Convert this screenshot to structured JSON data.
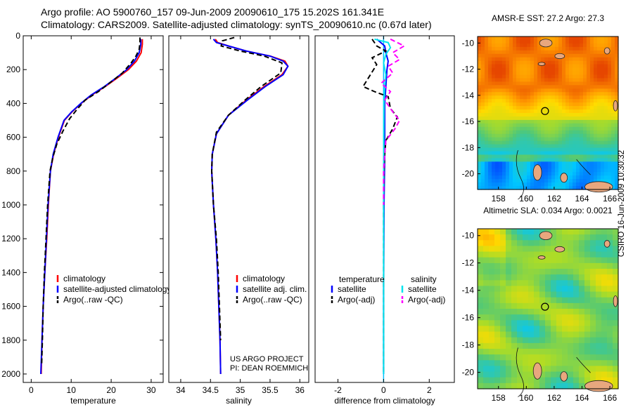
{
  "title": {
    "line1": "Argo profile: AO 5900760_157 09-Jun-2009 20090610_175 15.202S 161.341E",
    "line2": "Climatology: CARS2009. Satellite-adjusted climatology: synTS_20090610.nc (0.67d later)"
  },
  "credit": "CSIRO 16-Jun-2009 10:30:32",
  "project_note": {
    "line1": "US ARGO PROJECT",
    "line2": "PI: DEAN ROEMMICH"
  },
  "colors": {
    "climatology": "#ff0000",
    "satellite": "#0000ff",
    "argo": "#000000",
    "sat_salinity": "#00e5ee",
    "argo_salinity": "#ff00ff",
    "zero_line": "#00bfff"
  },
  "chart_data": [
    {
      "type": "line",
      "id": "temperature",
      "xlabel": "temperature",
      "ylabel": "",
      "xlim": [
        -2,
        33
      ],
      "ylim": [
        2050,
        0
      ],
      "y_reversed": true,
      "xticks": [
        0,
        10,
        20,
        30
      ],
      "yticks": [
        0,
        200,
        400,
        600,
        800,
        1000,
        1200,
        1400,
        1600,
        1800,
        2000
      ],
      "legend_position": "lower-center",
      "legend": [
        "climatology",
        "satellite-adjusted climatology",
        "Argo(..raw -QC)"
      ],
      "series": [
        {
          "name": "climatology",
          "style": "solid",
          "points": [
            [
              27.8,
              20
            ],
            [
              27.8,
              50
            ],
            [
              27.5,
              100
            ],
            [
              26.3,
              150
            ],
            [
              24.3,
              200
            ],
            [
              21.5,
              250
            ],
            [
              18.5,
              300
            ],
            [
              15.2,
              350
            ],
            [
              12.5,
              400
            ],
            [
              10.2,
              450
            ],
            [
              8.3,
              500
            ],
            [
              6.8,
              600
            ],
            [
              5.6,
              700
            ],
            [
              4.8,
              800
            ],
            [
              4.3,
              1000
            ],
            [
              3.9,
              1200
            ],
            [
              3.4,
              1400
            ],
            [
              3.0,
              1600
            ],
            [
              2.7,
              1800
            ],
            [
              2.5,
              2000
            ]
          ]
        },
        {
          "name": "satellite",
          "style": "solid",
          "points": [
            [
              27.4,
              20
            ],
            [
              27.4,
              50
            ],
            [
              27.0,
              100
            ],
            [
              25.8,
              150
            ],
            [
              23.9,
              200
            ],
            [
              21.2,
              250
            ],
            [
              18.3,
              300
            ],
            [
              15.0,
              350
            ],
            [
              12.4,
              400
            ],
            [
              10.1,
              450
            ],
            [
              8.2,
              500
            ],
            [
              6.7,
              600
            ],
            [
              5.5,
              700
            ],
            [
              4.8,
              800
            ],
            [
              4.2,
              1000
            ],
            [
              3.8,
              1200
            ],
            [
              3.4,
              1400
            ],
            [
              3.0,
              1600
            ],
            [
              2.7,
              1800
            ],
            [
              2.4,
              2000
            ]
          ]
        },
        {
          "name": "argo",
          "style": "dashed",
          "points": [
            [
              27.2,
              10
            ],
            [
              27.2,
              40
            ],
            [
              27.0,
              80
            ],
            [
              26.2,
              120
            ],
            [
              25.0,
              160
            ],
            [
              22.8,
              220
            ],
            [
              20.1,
              270
            ],
            [
              16.8,
              330
            ],
            [
              13.5,
              380
            ],
            [
              11.3,
              440
            ],
            [
              9.6,
              490
            ],
            [
              8.0,
              560
            ],
            [
              6.4,
              640
            ],
            [
              5.4,
              720
            ],
            [
              4.7,
              800
            ],
            [
              4.1,
              1000
            ],
            [
              3.7,
              1200
            ],
            [
              3.3,
              1400
            ],
            [
              3.0,
              1600
            ],
            [
              2.8,
              1800
            ],
            [
              2.6,
              1950
            ]
          ]
        }
      ]
    },
    {
      "type": "line",
      "id": "salinity",
      "xlabel": "salinity",
      "ylabel": "",
      "xlim": [
        33.8,
        36.15
      ],
      "ylim": [
        2050,
        0
      ],
      "y_reversed": true,
      "xticks": [
        34,
        34.5,
        35,
        35.5,
        36
      ],
      "yticks": [],
      "legend_position": "lower-right",
      "legend": [
        "climatology",
        "satellite adj. clim.",
        "Argo(..raw -QC)"
      ],
      "series": [
        {
          "name": "climatology",
          "style": "solid",
          "points": [
            [
              34.58,
              20
            ],
            [
              34.62,
              40
            ],
            [
              34.8,
              60
            ],
            [
              35.1,
              90
            ],
            [
              35.5,
              120
            ],
            [
              35.75,
              150
            ],
            [
              35.8,
              180
            ],
            [
              35.7,
              230
            ],
            [
              35.4,
              300
            ],
            [
              35.1,
              380
            ],
            [
              34.8,
              470
            ],
            [
              34.6,
              580
            ],
            [
              34.53,
              700
            ],
            [
              34.52,
              800
            ],
            [
              34.55,
              1000
            ],
            [
              34.59,
              1200
            ],
            [
              34.62,
              1400
            ],
            [
              34.64,
              1600
            ],
            [
              34.66,
              1800
            ],
            [
              34.67,
              2000
            ]
          ]
        },
        {
          "name": "satellite",
          "style": "solid",
          "points": [
            [
              34.55,
              20
            ],
            [
              34.6,
              40
            ],
            [
              34.8,
              60
            ],
            [
              35.1,
              90
            ],
            [
              35.5,
              120
            ],
            [
              35.72,
              150
            ],
            [
              35.8,
              180
            ],
            [
              35.72,
              230
            ],
            [
              35.42,
              300
            ],
            [
              35.12,
              380
            ],
            [
              34.8,
              470
            ],
            [
              34.6,
              580
            ],
            [
              34.53,
              700
            ],
            [
              34.52,
              800
            ],
            [
              34.55,
              1000
            ],
            [
              34.59,
              1200
            ],
            [
              34.62,
              1400
            ],
            [
              34.64,
              1600
            ],
            [
              34.66,
              1800
            ],
            [
              34.67,
              2000
            ]
          ]
        },
        {
          "name": "argo",
          "style": "dashed",
          "points": [
            [
              34.9,
              10
            ],
            [
              34.7,
              30
            ],
            [
              34.68,
              60
            ],
            [
              35.0,
              90
            ],
            [
              35.4,
              120
            ],
            [
              35.7,
              160
            ],
            [
              35.68,
              220
            ],
            [
              35.35,
              300
            ],
            [
              35.08,
              380
            ],
            [
              34.8,
              470
            ],
            [
              34.6,
              570
            ],
            [
              34.53,
              700
            ],
            [
              34.52,
              800
            ],
            [
              34.55,
              1000
            ],
            [
              34.6,
              1200
            ],
            [
              34.63,
              1400
            ],
            [
              34.65,
              1600
            ],
            [
              34.67,
              1800
            ]
          ]
        }
      ]
    },
    {
      "type": "line",
      "id": "difference",
      "xlabel": "difference from climatology",
      "ylabel": "",
      "xlim": [
        -3,
        3.1
      ],
      "ylim": [
        2050,
        0
      ],
      "y_reversed": true,
      "xticks": [
        -2,
        0,
        2
      ],
      "yticks": [],
      "legend_position": "lower-center",
      "legend_groups": [
        {
          "header": "temperature",
          "items": [
            "satellite",
            "Argo(-adj)"
          ]
        },
        {
          "header": "salinity",
          "items": [
            "satellite",
            "Argo(-adj)"
          ]
        }
      ],
      "series": [
        {
          "name": "temperature satellite",
          "style": "solid",
          "points": [
            [
              -0.3,
              20
            ],
            [
              0.05,
              60
            ],
            [
              0.1,
              100
            ],
            [
              0.2,
              150
            ],
            [
              0.15,
              200
            ],
            [
              0.1,
              300
            ],
            [
              0.05,
              400
            ],
            [
              0.05,
              500
            ],
            [
              0.05,
              700
            ],
            [
              0.02,
              1000
            ],
            [
              0.0,
              1500
            ],
            [
              0.0,
              2000
            ]
          ]
        },
        {
          "name": "temperature argo",
          "style": "dashed",
          "points": [
            [
              -0.5,
              20
            ],
            [
              -0.3,
              60
            ],
            [
              0.1,
              90
            ],
            [
              -0.5,
              130
            ],
            [
              -0.3,
              170
            ],
            [
              -0.9,
              300
            ],
            [
              -0.4,
              330
            ],
            [
              0.2,
              360
            ],
            [
              0.3,
              430
            ],
            [
              0.6,
              480
            ],
            [
              0.4,
              550
            ],
            [
              0.1,
              620
            ],
            [
              0.05,
              700
            ],
            [
              0.02,
              800
            ],
            [
              0.0,
              1000
            ],
            [
              0.0,
              1500
            ],
            [
              0.0,
              2000
            ]
          ]
        },
        {
          "name": "salinity satellite",
          "style": "solid",
          "points": [
            [
              -0.4,
              20
            ],
            [
              0.2,
              40
            ],
            [
              0.3,
              70
            ],
            [
              0.1,
              110
            ],
            [
              0.0,
              160
            ],
            [
              0.1,
              230
            ],
            [
              0.05,
              300
            ],
            [
              0.02,
              400
            ],
            [
              0.01,
              600
            ],
            [
              0.0,
              1000
            ],
            [
              0.0,
              1500
            ],
            [
              0.0,
              2000
            ]
          ]
        },
        {
          "name": "salinity argo",
          "style": "dashed",
          "points": [
            [
              0.3,
              20
            ],
            [
              0.9,
              60
            ],
            [
              0.4,
              100
            ],
            [
              0.7,
              140
            ],
            [
              0.2,
              180
            ],
            [
              0.4,
              220
            ],
            [
              -0.1,
              280
            ],
            [
              0.3,
              330
            ],
            [
              0.05,
              380
            ],
            [
              0.4,
              450
            ],
            [
              0.7,
              500
            ],
            [
              0.5,
              550
            ],
            [
              0.1,
              620
            ],
            [
              0.05,
              700
            ],
            [
              0.0,
              800
            ],
            [
              0.0,
              1000
            ]
          ]
        }
      ]
    },
    {
      "type": "heatmap",
      "id": "sst_map",
      "title": "AMSR-E SST: 27.2  Argo: 27.3",
      "xlim": [
        156.5,
        166.6
      ],
      "ylim": [
        -21.2,
        -9.5
      ],
      "xticks": [
        158,
        160,
        162,
        164,
        166
      ],
      "yticks": [
        -10,
        -12,
        -14,
        -16,
        -18,
        -20
      ],
      "marker": {
        "lon": 161.341,
        "lat": -15.202
      }
    },
    {
      "type": "heatmap",
      "id": "sla_map",
      "title": "Altimetric SLA: 0.034  Argo: 0.0021",
      "xlim": [
        156.5,
        166.6
      ],
      "ylim": [
        -21.2,
        -9.5
      ],
      "xticks": [
        158,
        160,
        162,
        164,
        166
      ],
      "yticks": [
        -10,
        -12,
        -14,
        -16,
        -18,
        -20
      ],
      "marker": {
        "lon": 161.341,
        "lat": -15.202
      }
    }
  ]
}
